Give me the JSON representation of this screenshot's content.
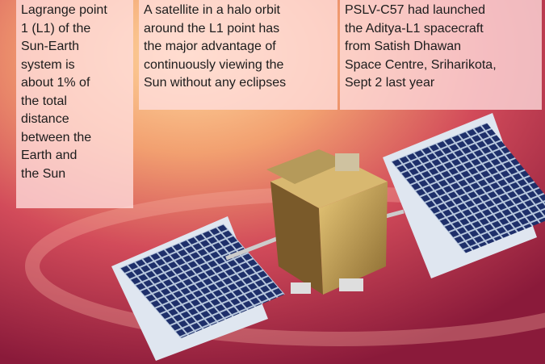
{
  "captions": [
    {
      "lines": [
        "Lagrange point",
        "1 (L1) of the",
        "Sun-Earth",
        "system is",
        "about 1% of",
        "the total",
        "distance",
        "between the",
        "Earth and",
        "the Sun"
      ]
    },
    {
      "lines": [
        "A satellite in a halo orbit",
        "around the L1 point has",
        "the major advantage of",
        "continuously viewing the",
        "Sun without any eclipses"
      ]
    },
    {
      "lines": [
        "PSLV-C57 had launched",
        "the Aditya-L1 spacecraft",
        "from Satish Dhawan",
        "Space Centre, Sriharikota,",
        "Sept 2 last year"
      ]
    }
  ]
}
